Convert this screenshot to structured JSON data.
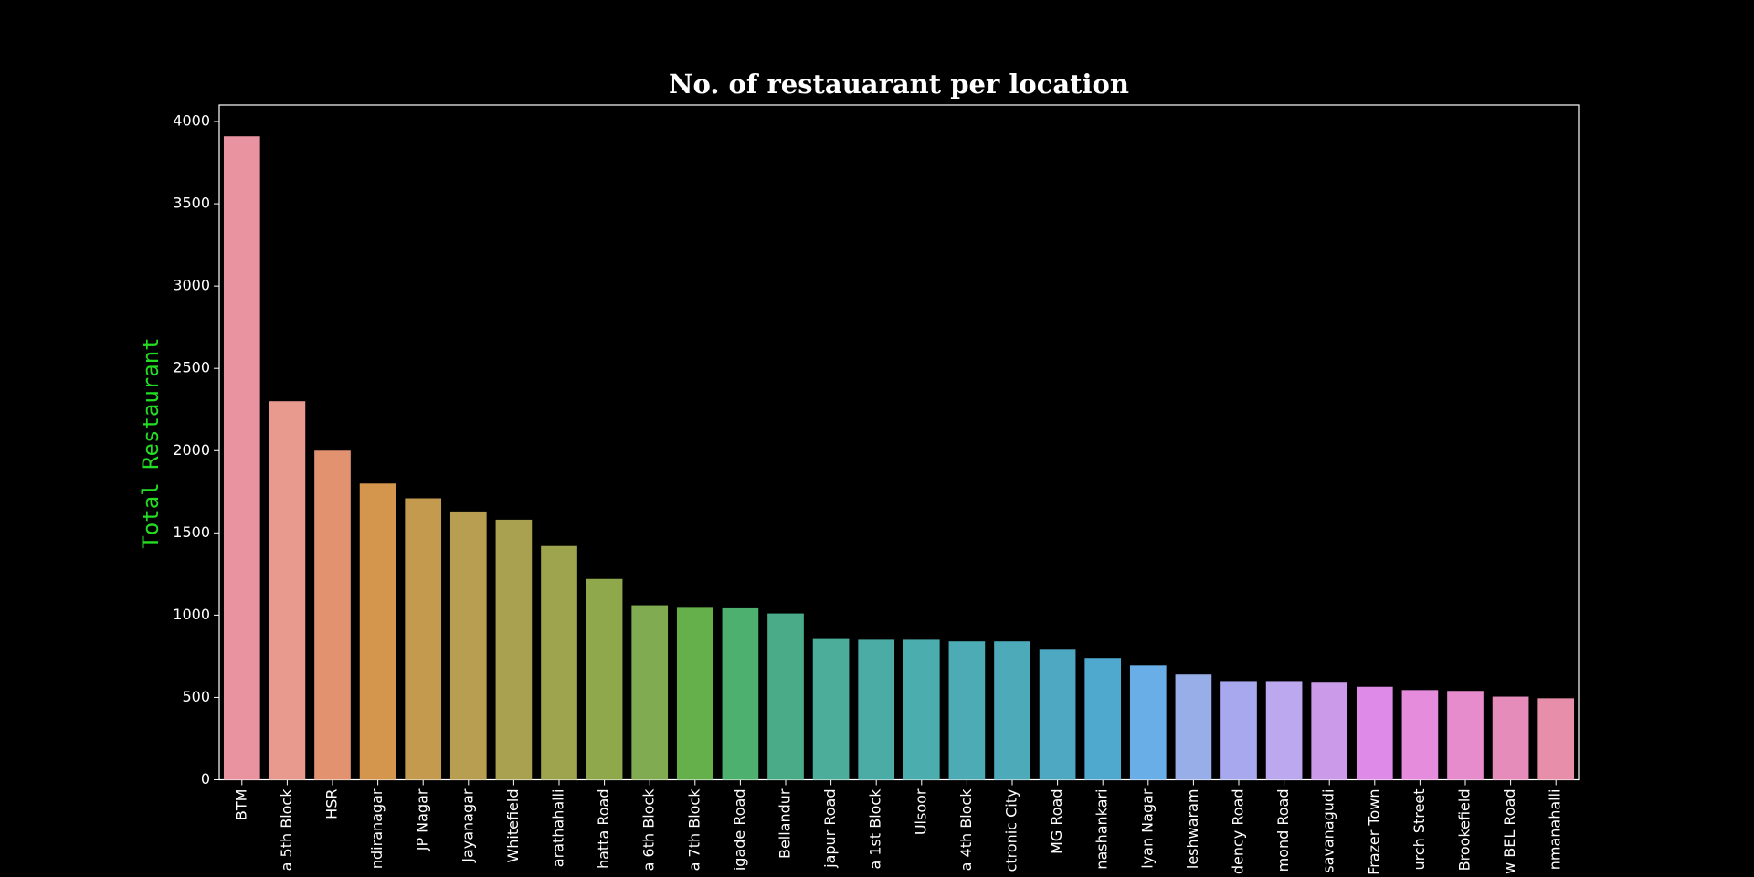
{
  "chart_data": {
    "type": "bar",
    "title": "No. of restauarant per location",
    "ylabel": "Total Restaurant",
    "categories": [
      "BTM",
      "a 5th Block",
      "HSR",
      "ndiranagar",
      "JP Nagar",
      "Jayanagar",
      "Whitefield",
      "arathahalli",
      "hatta Road",
      "a 6th Block",
      "a 7th Block",
      "igade Road",
      "Bellandur",
      "japur Road",
      "a 1st Block",
      "Ulsoor",
      "a 4th Block",
      "ctronic City",
      "MG Road",
      "nashankari",
      "lyan Nagar",
      "leshwaram",
      "dency Road",
      "mond Road",
      "savanagudi",
      "Frazer Town",
      "urch Street",
      "Brookefield",
      "w BEL Road",
      "nmanahalli"
    ],
    "values": [
      3910,
      2300,
      2000,
      1800,
      1710,
      1630,
      1580,
      1420,
      1220,
      1060,
      1050,
      1047,
      1010,
      860,
      850,
      850,
      840,
      840,
      795,
      740,
      695,
      640,
      600,
      600,
      590,
      565,
      545,
      540,
      505,
      495
    ],
    "colors": [
      "#e8939f",
      "#e89a8f",
      "#e39270",
      "#d4964c",
      "#c39a4e",
      "#b79e50",
      "#a9a050",
      "#9ea34e",
      "#8fa84c",
      "#80ab50",
      "#66b04c",
      "#4db06e",
      "#4aab88",
      "#4bad9a",
      "#4aaca5",
      "#4badad",
      "#4cabb4",
      "#4daab9",
      "#4ea8c2",
      "#4fa8cd",
      "#6aaee8",
      "#97aee8",
      "#a8a8ee",
      "#bca8ee",
      "#cb9ae8",
      "#de8ae8",
      "#e58cdc",
      "#e68bcc",
      "#e68cbb",
      "#e78eaa"
    ],
    "ylim": [
      0,
      4100
    ],
    "yticks": [
      0,
      500,
      1000,
      1500,
      2000,
      2500,
      3000,
      3500,
      4000
    ],
    "grid": false
  }
}
